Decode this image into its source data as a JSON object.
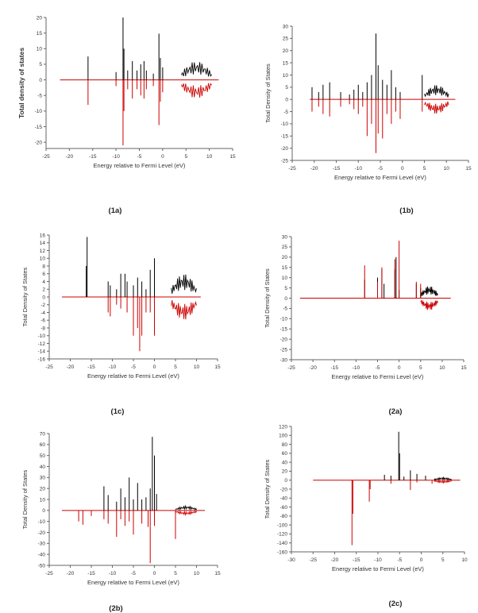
{
  "colors": {
    "spin_up": "#000000",
    "spin_down": "#cc0000",
    "axis": "#666666"
  },
  "chart_data": [
    {
      "type": "line",
      "caption": "(1a)",
      "xlabel": "Energy relative to Fermi Level (eV)",
      "ylabel": "Total density of states",
      "xlim": [
        -25,
        15
      ],
      "ylim": [
        -22,
        20
      ],
      "xticks": [
        -25,
        -20,
        -15,
        -10,
        -5,
        0,
        5,
        10,
        15
      ],
      "yticks": [
        -20,
        -15,
        -10,
        -5,
        0,
        5,
        10,
        15,
        20
      ],
      "baseline": [
        -22,
        12
      ],
      "series": [
        {
          "values": [
            [
              -16,
              7.5
            ],
            [
              -10,
              2.5
            ],
            [
              -8.5,
              20
            ],
            [
              -8.3,
              10
            ],
            [
              -7.5,
              3
            ],
            [
              -6.5,
              6
            ],
            [
              -5.5,
              3
            ],
            [
              -4.7,
              5
            ],
            [
              -4,
              6
            ],
            [
              -3.5,
              3
            ],
            [
              -2,
              2
            ],
            [
              -0.8,
              14.8
            ],
            [
              -0.5,
              7
            ],
            [
              0,
              4
            ]
          ]
        },
        {
          "values": [
            [
              -16,
              -8
            ],
            [
              -10,
              -2
            ],
            [
              -8.5,
              -21
            ],
            [
              -8.3,
              -10
            ],
            [
              -7.5,
              -3
            ],
            [
              -6.5,
              -6
            ],
            [
              -5.5,
              -3
            ],
            [
              -4.7,
              -5
            ],
            [
              -4,
              -6
            ],
            [
              -3.5,
              -3
            ],
            [
              -2,
              -2
            ],
            [
              -0.8,
              -14.5
            ],
            [
              -0.5,
              -7
            ],
            [
              0,
              -4
            ]
          ]
        }
      ],
      "band": {
        "start": 4,
        "end": 10.5,
        "peak": 6
      }
    },
    {
      "type": "line",
      "caption": "(1b)",
      "xlabel": "Energy relative to Fermi Level (eV)",
      "ylabel": "Total Density of States",
      "xlim": [
        -25,
        15
      ],
      "ylim": [
        -25,
        30
      ],
      "xticks": [
        -25,
        -20,
        -15,
        -10,
        -5,
        0,
        5,
        10,
        15
      ],
      "yticks": [
        -25,
        -20,
        -15,
        -10,
        -5,
        0,
        5,
        10,
        15,
        20,
        25,
        30
      ],
      "baseline": [
        -21,
        12
      ],
      "series": [
        {
          "values": [
            [
              -20.5,
              5
            ],
            [
              -19,
              3
            ],
            [
              -18,
              6
            ],
            [
              -16.5,
              7
            ],
            [
              -14,
              3
            ],
            [
              -12,
              2
            ],
            [
              -11,
              4
            ],
            [
              -10,
              6
            ],
            [
              -9,
              3
            ],
            [
              -8,
              7
            ],
            [
              -7,
              10
            ],
            [
              -6,
              27
            ],
            [
              -5.5,
              14
            ],
            [
              -4.5,
              8
            ],
            [
              -3.5,
              6
            ],
            [
              -2.5,
              12
            ],
            [
              -1.5,
              5
            ],
            [
              -0.5,
              3
            ],
            [
              4.5,
              10
            ]
          ]
        },
        {
          "values": [
            [
              -20.5,
              -5
            ],
            [
              -19,
              -3
            ],
            [
              -18,
              -6
            ],
            [
              -16.5,
              -7
            ],
            [
              -14,
              -3
            ],
            [
              -12,
              -2
            ],
            [
              -11,
              -4
            ],
            [
              -10,
              -6
            ],
            [
              -9,
              -3
            ],
            [
              -8,
              -15
            ],
            [
              -7,
              -10
            ],
            [
              -6,
              -22
            ],
            [
              -5.5,
              -14
            ],
            [
              -4.5,
              -16
            ],
            [
              -3.5,
              -6
            ],
            [
              -2.5,
              -10
            ],
            [
              -1.5,
              -5
            ],
            [
              -0.5,
              -8
            ],
            [
              4.5,
              -5
            ]
          ]
        }
      ],
      "band": {
        "start": 5,
        "end": 10.5,
        "peak": 6
      }
    },
    {
      "type": "line",
      "caption": "(1c)",
      "xlabel": "Energy relative to Fermi Level (eV)",
      "ylabel": "Total Density of States",
      "xlim": [
        -25,
        15
      ],
      "ylim": [
        -16,
        16
      ],
      "xticks": [
        -25,
        -20,
        -15,
        -10,
        -5,
        0,
        5,
        10,
        15
      ],
      "yticks": [
        -16,
        -14,
        -12,
        -10,
        -8,
        -6,
        -4,
        -2,
        0,
        2,
        4,
        6,
        8,
        10,
        12,
        14,
        16
      ],
      "baseline": [
        -22,
        11
      ],
      "series": [
        {
          "values": [
            [
              -16,
              15.5
            ],
            [
              -16.2,
              8
            ],
            [
              -11,
              4
            ],
            [
              -10.5,
              3
            ],
            [
              -9,
              2
            ],
            [
              -8,
              6
            ],
            [
              -7,
              6
            ],
            [
              -6.5,
              4
            ],
            [
              -5,
              3
            ],
            [
              -4,
              5
            ],
            [
              -3,
              4
            ],
            [
              -2,
              2
            ],
            [
              -1,
              7
            ],
            [
              0,
              10
            ]
          ]
        },
        {
          "values": [
            [
              -11,
              -4
            ],
            [
              -10.5,
              -5
            ],
            [
              -9,
              -2
            ],
            [
              -8,
              -3
            ],
            [
              -6.5,
              -4
            ],
            [
              -5,
              -10
            ],
            [
              -4,
              -8
            ],
            [
              -3.5,
              -14
            ],
            [
              -3,
              -10
            ],
            [
              -2,
              -4
            ],
            [
              -1,
              -4
            ],
            [
              0,
              -10
            ]
          ]
        }
      ],
      "band": {
        "start": 4,
        "end": 10,
        "peak": 6
      }
    },
    {
      "type": "line",
      "caption": "(2a)",
      "xlabel": "Energy relative to Fermi Level (eV)",
      "ylabel": "Total Density of States",
      "xlim": [
        -25,
        15
      ],
      "ylim": [
        -30,
        30
      ],
      "xticks": [
        -25,
        -20,
        -15,
        -10,
        -5,
        0,
        5,
        10,
        15
      ],
      "yticks": [
        -30,
        -25,
        -20,
        -15,
        -10,
        -5,
        0,
        5,
        10,
        15,
        20,
        25,
        30
      ],
      "baseline": [
        -23,
        12
      ],
      "series": [
        {
          "values": [
            [
              -8,
              9
            ],
            [
              -5,
              10
            ],
            [
              -4,
              14
            ],
            [
              -3.5,
              7
            ],
            [
              -1,
              14
            ],
            [
              -0.7,
              20
            ],
            [
              0,
              4
            ],
            [
              4,
              7
            ],
            [
              5,
              5
            ]
          ]
        },
        {
          "values": [
            [
              -8,
              16
            ],
            [
              -5,
              8
            ],
            [
              -4,
              15
            ],
            [
              -1,
              19
            ],
            [
              0,
              28
            ],
            [
              4,
              8
            ],
            [
              5,
              7
            ]
          ]
        }
      ],
      "band": {
        "start": 5,
        "end": 9,
        "peak": 6
      }
    },
    {
      "type": "line",
      "caption": "(2b)",
      "xlabel": "Energy relative to Fermi Level (eV)",
      "ylabel": "Total Density of States",
      "xlim": [
        -25,
        15
      ],
      "ylim": [
        -50,
        70
      ],
      "xticks": [
        -25,
        -20,
        -15,
        -10,
        -5,
        0,
        5,
        10,
        15
      ],
      "yticks": [
        -50,
        -40,
        -30,
        -20,
        -10,
        0,
        10,
        20,
        30,
        40,
        50,
        60,
        70
      ],
      "baseline": [
        -22,
        12
      ],
      "series": [
        {
          "values": [
            [
              -12,
              22
            ],
            [
              -11,
              14
            ],
            [
              -9,
              8
            ],
            [
              -8,
              20
            ],
            [
              -7,
              12
            ],
            [
              -6,
              30
            ],
            [
              -5,
              10
            ],
            [
              -4,
              25
            ],
            [
              -3,
              10
            ],
            [
              -2,
              12
            ],
            [
              -1,
              20
            ],
            [
              -0.5,
              67
            ],
            [
              0,
              50
            ],
            [
              0.5,
              15
            ]
          ]
        },
        {
          "values": [
            [
              -18,
              -10
            ],
            [
              -17,
              -13
            ],
            [
              -15,
              -5
            ],
            [
              -12,
              -8
            ],
            [
              -11,
              -12
            ],
            [
              -9,
              -24
            ],
            [
              -8,
              -8
            ],
            [
              -7,
              -14
            ],
            [
              -6,
              -10
            ],
            [
              -5,
              -22
            ],
            [
              -3,
              -12
            ],
            [
              -1.5,
              -15
            ],
            [
              -1,
              -48
            ],
            [
              0,
              -14
            ],
            [
              5,
              -26
            ]
          ]
        }
      ],
      "band": {
        "start": 5,
        "end": 10,
        "peak": 4
      }
    },
    {
      "type": "line",
      "caption": "(2c)",
      "xlabel": "Energy relative to Fermi Level (eV)",
      "ylabel": "Total Density of States",
      "xlim": [
        -30,
        10
      ],
      "ylim": [
        -160,
        120
      ],
      "xticks": [
        -30,
        -25,
        -20,
        -15,
        -10,
        -5,
        0,
        5,
        10
      ],
      "yticks": [
        -160,
        -140,
        -120,
        -100,
        -80,
        -60,
        -40,
        -20,
        0,
        20,
        40,
        60,
        80,
        100,
        120
      ],
      "baseline": [
        -25,
        9
      ],
      "series": [
        {
          "values": [
            [
              -8.5,
              12
            ],
            [
              -7,
              10
            ],
            [
              -5.2,
              108
            ],
            [
              -5,
              60
            ],
            [
              -4,
              8
            ],
            [
              -2.5,
              22
            ],
            [
              -1,
              14
            ],
            [
              1,
              10
            ]
          ]
        },
        {
          "values": [
            [
              -16,
              -145
            ],
            [
              -15.8,
              -75
            ],
            [
              -12,
              -48
            ],
            [
              -11.8,
              -20
            ],
            [
              -7,
              -8
            ],
            [
              -2.5,
              -22
            ],
            [
              -1,
              -5
            ],
            [
              2.5,
              -8
            ]
          ]
        }
      ],
      "band": {
        "start": 3,
        "end": 7,
        "peak": 6
      }
    }
  ]
}
